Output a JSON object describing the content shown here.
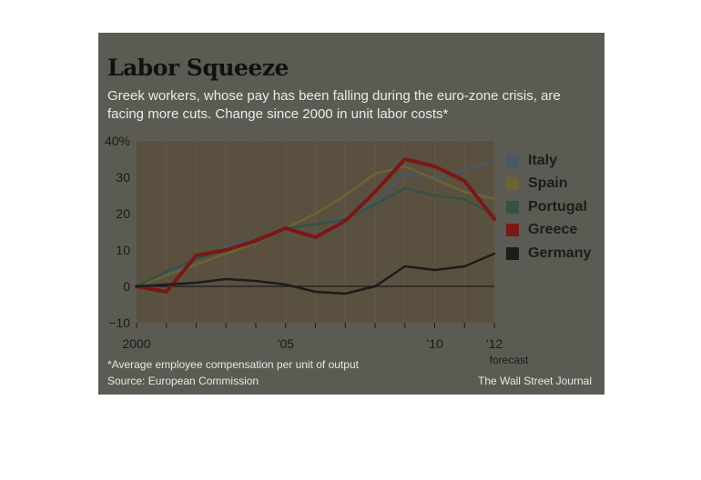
{
  "chart_data": {
    "type": "line",
    "title": "Labor Squeeze",
    "subtitle": "Greek workers, whose pay has been falling during the euro-zone crisis, are facing more cuts. Change since 2000 in unit labor costs*",
    "x": [
      2000,
      2001,
      2002,
      2003,
      2004,
      2005,
      2006,
      2007,
      2008,
      2009,
      2010,
      2011,
      2012
    ],
    "x_tick_values": [
      2000,
      2005,
      2010,
      2012
    ],
    "x_tick_labels": [
      "2000",
      "’05",
      "’10",
      "’12"
    ],
    "x_sublabel": "forecast",
    "xlim": [
      2000,
      2012
    ],
    "ylim": [
      -10,
      40
    ],
    "y_ticks": [
      -10,
      0,
      10,
      20,
      30,
      40
    ],
    "y_tick_labels": [
      "−10",
      "0",
      "10",
      "20",
      "30",
      "40%"
    ],
    "grid": "vertical",
    "legend_position": "right",
    "series": [
      {
        "name": "Italy",
        "color": "#4a5768",
        "values": [
          0,
          3.5,
          7,
          11,
          13,
          16,
          17,
          19,
          23,
          31,
          30,
          32,
          34.5
        ]
      },
      {
        "name": "Spain",
        "color": "#6d6234",
        "values": [
          0,
          3,
          6,
          9,
          12,
          16,
          20,
          25,
          31,
          33,
          29.5,
          26,
          24
        ]
      },
      {
        "name": "Portugal",
        "color": "#345245",
        "values": [
          0,
          4,
          7.5,
          10,
          13,
          16,
          17,
          18.5,
          22.5,
          27,
          25,
          24,
          19.5
        ]
      },
      {
        "name": "Greece",
        "color": "#7a1717",
        "values": [
          0,
          -1.5,
          8.5,
          10,
          12.5,
          16,
          13.5,
          18,
          26,
          35,
          33,
          29,
          18.5
        ]
      },
      {
        "name": "Germany",
        "color": "#1c1c1c",
        "values": [
          0,
          0.5,
          1,
          2,
          1.5,
          0.5,
          -1.5,
          -2,
          0,
          5.5,
          4.5,
          5.5,
          9
        ]
      }
    ]
  },
  "footnote": "*Average employee compensation per unit of output",
  "source": "Source: European Commission",
  "credit": "The Wall Street Journal"
}
